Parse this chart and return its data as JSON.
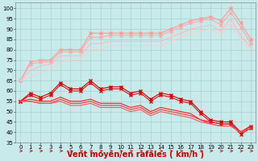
{
  "x": [
    0,
    1,
    2,
    3,
    4,
    5,
    6,
    7,
    8,
    9,
    10,
    11,
    12,
    13,
    14,
    15,
    16,
    17,
    18,
    19,
    20,
    21,
    22,
    23
  ],
  "series": [
    {
      "name": "light_top1",
      "color": "#ff9999",
      "linewidth": 0.8,
      "marker": "x",
      "markersize": 2.5,
      "y": [
        65,
        74,
        75,
        75,
        80,
        80,
        80,
        88,
        88,
        88,
        88,
        88,
        88,
        88,
        88,
        90,
        92,
        94,
        95,
        96,
        94,
        100,
        93,
        85
      ]
    },
    {
      "name": "light_top2",
      "color": "#ffaaaa",
      "linewidth": 0.8,
      "marker": "x",
      "markersize": 2.5,
      "y": [
        65,
        73,
        74,
        74,
        79,
        79,
        79,
        86,
        86,
        87,
        87,
        87,
        87,
        87,
        87,
        89,
        91,
        93,
        94,
        95,
        92,
        98,
        91,
        83
      ]
    },
    {
      "name": "light_plain1",
      "color": "#ffbbbb",
      "linewidth": 0.8,
      "marker": null,
      "markersize": 0,
      "y": [
        65,
        70,
        72,
        73,
        77,
        77,
        77,
        83,
        83,
        84,
        84,
        84,
        84,
        84,
        84,
        86,
        88,
        90,
        91,
        92,
        89,
        95,
        87,
        81
      ]
    },
    {
      "name": "light_plain2",
      "color": "#ffcccc",
      "linewidth": 0.8,
      "marker": null,
      "markersize": 0,
      "y": [
        65,
        67,
        69,
        70,
        74,
        75,
        75,
        80,
        80,
        82,
        82,
        82,
        82,
        82,
        82,
        84,
        86,
        88,
        89,
        90,
        87,
        93,
        85,
        79
      ]
    },
    {
      "name": "red_marked1",
      "color": "#cc0000",
      "linewidth": 0.8,
      "marker": "x",
      "markersize": 2.5,
      "y": [
        55,
        59,
        57,
        59,
        64,
        61,
        61,
        65,
        61,
        62,
        62,
        59,
        60,
        56,
        59,
        58,
        56,
        55,
        50,
        46,
        45,
        45,
        40,
        43
      ]
    },
    {
      "name": "red_marked2",
      "color": "#dd1111",
      "linewidth": 0.8,
      "marker": "x",
      "markersize": 2.5,
      "y": [
        55,
        58,
        56,
        58,
        63,
        60,
        60,
        64,
        60,
        61,
        61,
        58,
        59,
        55,
        58,
        57,
        55,
        54,
        49,
        45,
        44,
        44,
        39,
        42
      ]
    },
    {
      "name": "red_plain1",
      "color": "#ee2222",
      "linewidth": 0.8,
      "marker": null,
      "markersize": 0,
      "y": [
        55,
        56,
        55,
        55,
        57,
        55,
        55,
        56,
        54,
        54,
        54,
        52,
        53,
        50,
        52,
        51,
        50,
        49,
        46,
        45,
        44,
        44,
        40,
        43
      ]
    },
    {
      "name": "red_plain2",
      "color": "#ff3333",
      "linewidth": 0.8,
      "marker": null,
      "markersize": 0,
      "y": [
        55,
        55,
        54,
        54,
        56,
        54,
        54,
        55,
        53,
        53,
        53,
        51,
        52,
        49,
        51,
        50,
        49,
        48,
        46,
        44,
        43,
        43,
        40,
        42
      ]
    },
    {
      "name": "red_plain3",
      "color": "#ff5555",
      "linewidth": 0.8,
      "marker": null,
      "markersize": 0,
      "y": [
        55,
        55,
        54,
        54,
        55,
        53,
        53,
        54,
        52,
        52,
        52,
        50,
        51,
        48,
        50,
        49,
        48,
        47,
        45,
        44,
        43,
        43,
        40,
        42
      ]
    }
  ],
  "xlabel": "Vent moyen/en rafales ( km/h )",
  "xlim": [
    -0.5,
    23.5
  ],
  "ylim": [
    35,
    103
  ],
  "yticks": [
    35,
    40,
    45,
    50,
    55,
    60,
    65,
    70,
    75,
    80,
    85,
    90,
    95,
    100
  ],
  "xticks": [
    0,
    1,
    2,
    3,
    4,
    5,
    6,
    7,
    8,
    9,
    10,
    11,
    12,
    13,
    14,
    15,
    16,
    17,
    18,
    19,
    20,
    21,
    22,
    23
  ],
  "bg_color": "#c8eaea",
  "grid_color": "#a0cccc",
  "xlabel_color": "#cc0000",
  "xlabel_fontsize": 7,
  "tick_fontsize": 5,
  "arrow_color": "#cc0000"
}
